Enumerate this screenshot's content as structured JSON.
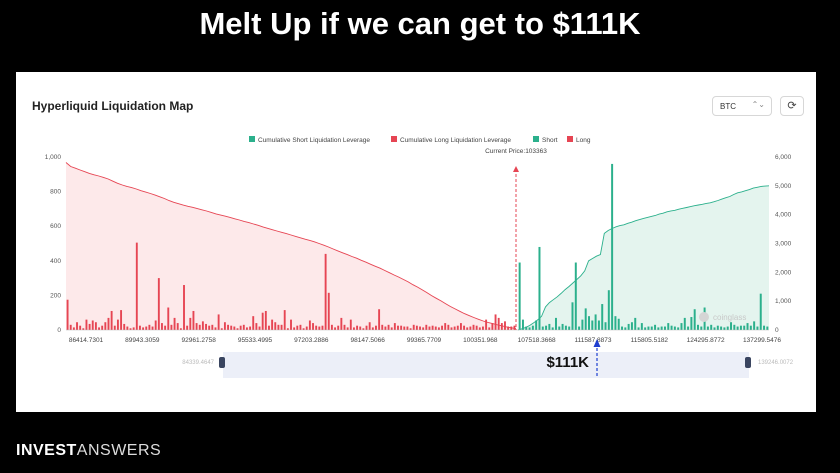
{
  "headline": "Melt Up if we can get to $111K",
  "card": {
    "title": "Hyperliquid Liquidation Map"
  },
  "controls": {
    "symbol": "BTC",
    "chevron": "⌃⌄",
    "refresh_icon": "⟳"
  },
  "watermark": "coinglass",
  "annotation": "$111K",
  "brand": {
    "bold": "INVEST",
    "light": "ANSWERS"
  },
  "slider": {
    "left_value": "84339.4647",
    "right_value": "139246.0072"
  },
  "chart_data": {
    "type": "bar",
    "current_price_label": "Current Price:103363",
    "current_price": 103363,
    "target_price": 111000,
    "x_range": [
      84339.4647,
      139246.0072
    ],
    "x_ticks": [
      "86414.7301",
      "89943.3059",
      "92961.2758",
      "95533.4995",
      "97203.2886",
      "98147.5066",
      "99365.7709",
      "100351.968",
      "107518.3668",
      "111587.8873",
      "115805.5182",
      "124295.8772",
      "137299.5476"
    ],
    "y_left": {
      "range": [
        0,
        1000
      ],
      "ticks": [
        "1,000",
        "800",
        "600",
        "400",
        "200",
        "0"
      ]
    },
    "y_right": {
      "range": [
        0,
        6000
      ],
      "ticks": [
        "6,000",
        "5,000",
        "4,000",
        "3,000",
        "2,000",
        "1,000",
        "0"
      ]
    },
    "legend": [
      {
        "name": "Cumulative Short Liquidation Leverage",
        "color": "#2bb08c"
      },
      {
        "name": "Cumulative Long Liquidation Leverage",
        "color": "#e64553"
      },
      {
        "name": "Short",
        "color": "#2bb08c"
      },
      {
        "name": "Long",
        "color": "#e64553"
      }
    ],
    "long_bars": [
      175,
      30,
      15,
      45,
      25,
      10,
      60,
      35,
      55,
      45,
      15,
      25,
      45,
      70,
      110,
      25,
      60,
      115,
      35,
      20,
      10,
      15,
      505,
      25,
      15,
      20,
      30,
      20,
      55,
      300,
      40,
      25,
      130,
      30,
      70,
      40,
      10,
      260,
      25,
      70,
      110,
      40,
      30,
      50,
      35,
      25,
      30,
      15,
      90,
      10,
      45,
      30,
      25,
      20,
      10,
      25,
      30,
      15,
      20,
      80,
      40,
      20,
      100,
      110,
      25,
      60,
      45,
      30,
      30,
      115,
      10,
      60,
      15,
      25,
      30,
      10,
      20,
      55,
      40,
      25,
      20,
      25,
      440,
      215,
      30,
      15,
      25,
      70,
      30,
      15,
      60,
      15,
      25,
      20,
      10,
      25,
      45,
      15,
      25,
      120,
      30,
      20,
      30,
      15,
      40,
      25,
      25,
      20,
      20,
      10,
      30,
      25,
      20,
      15,
      30,
      20,
      25,
      20,
      15,
      25,
      40,
      30,
      15,
      20,
      25,
      40,
      25,
      15,
      20,
      30,
      25,
      15,
      20,
      60,
      15,
      40,
      90,
      70,
      40,
      50,
      20,
      20,
      25
    ],
    "short_bars": [
      390,
      60,
      20,
      15,
      25,
      55,
      480,
      20,
      25,
      35,
      15,
      70,
      20,
      35,
      25,
      20,
      160,
      390,
      20,
      60,
      125,
      80,
      55,
      90,
      55,
      150,
      45,
      230,
      960,
      80,
      65,
      20,
      15,
      35,
      45,
      70,
      15,
      40,
      15,
      20,
      20,
      30,
      15,
      20,
      20,
      40,
      25,
      20,
      15,
      40,
      70,
      20,
      75,
      120,
      30,
      20,
      130,
      20,
      30,
      15,
      25,
      20,
      15,
      20,
      45,
      30,
      20,
      25,
      25,
      40,
      25,
      50,
      20,
      210,
      25,
      20
    ],
    "cumulative_long": [
      968,
      945,
      935,
      925,
      915,
      905,
      897,
      890,
      882,
      873,
      860,
      848,
      838,
      830,
      823,
      815,
      805,
      797,
      789,
      780,
      770,
      760,
      748,
      738,
      730,
      722,
      715,
      709,
      702,
      695,
      688,
      680,
      671,
      664,
      658,
      651,
      643,
      636,
      628,
      621,
      613,
      605,
      596,
      588,
      580,
      572,
      565,
      557,
      549,
      541,
      533,
      525,
      518,
      510,
      500,
      490,
      480,
      468,
      457,
      446,
      436,
      425,
      415,
      403,
      392,
      380,
      368,
      357,
      344,
      331,
      318,
      306,
      292,
      278,
      262,
      248,
      232,
      216,
      199,
      183,
      168,
      152,
      136,
      122,
      108,
      95,
      83,
      72,
      62,
      52,
      44,
      37,
      30,
      24,
      18,
      13,
      8
    ],
    "cumulative_short": [
      5,
      40,
      90,
      160,
      250,
      350,
      470,
      800,
      950,
      1050,
      1150,
      1270,
      1400,
      1510,
      1630,
      1750,
      1880,
      2050,
      2400,
      2480,
      2560,
      2620,
      3350,
      3450,
      3520,
      3580,
      3620,
      3650,
      3700,
      3740,
      3790,
      3830,
      3870,
      3905,
      3940,
      3970,
      4020,
      4050,
      4100,
      4130,
      4150,
      4190,
      4220,
      4250,
      4280,
      4310,
      4335,
      4360,
      4390,
      4410,
      4450,
      4490,
      4540,
      4590,
      4630,
      4700,
      4760,
      4790,
      4830,
      4870,
      4920,
      4950,
      4980,
      4990,
      5000
    ]
  }
}
